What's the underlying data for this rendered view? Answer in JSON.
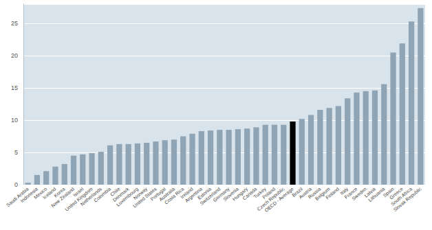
{
  "chart_data": {
    "type": "bar",
    "categories": [
      "Saudi Arabia",
      "Indonesia",
      "Mexico",
      "Iceland",
      "Korea",
      "New Zealand",
      "Israel",
      "United Kingdom",
      "Netherlands",
      "Colombia",
      "Chile",
      "Denmark",
      "Luxembourg",
      "Norway",
      "United States",
      "Portugal",
      "Australia",
      "Costa Rica",
      "Ireland",
      "Argentina",
      "Estonia",
      "Switzerland",
      "Germany",
      "Slovenia",
      "Hungary",
      "Canada",
      "Turkey",
      "Poland",
      "Czech Republic",
      "OECD - Average",
      "Brazil",
      "Austria",
      "Russia",
      "Belgium",
      "Finland",
      "Italy",
      "France",
      "Sweden",
      "Latvia",
      "Lithuania",
      "Spain",
      "Greece",
      "South Africa",
      "Slovak Republic"
    ],
    "values": [
      0.3,
      1.5,
      2.1,
      2.8,
      3.2,
      4.5,
      4.7,
      4.9,
      5.1,
      6.1,
      6.3,
      6.3,
      6.4,
      6.5,
      6.7,
      6.9,
      7.0,
      7.5,
      7.9,
      8.3,
      8.4,
      8.5,
      8.5,
      8.6,
      8.7,
      8.9,
      9.3,
      9.3,
      9.3,
      9.8,
      10.2,
      10.8,
      11.6,
      11.9,
      12.2,
      13.4,
      14.3,
      14.5,
      14.6,
      15.6,
      20.5,
      21.9,
      25.3,
      27.4
    ],
    "colors": [
      "#8fa4b4",
      "#8fa4b4",
      "#8fa4b4",
      "#8fa4b4",
      "#8fa4b4",
      "#8fa4b4",
      "#8fa4b4",
      "#8fa4b4",
      "#8fa4b4",
      "#8fa4b4",
      "#8fa4b4",
      "#8fa4b4",
      "#8fa4b4",
      "#8fa4b4",
      "#8fa4b4",
      "#8fa4b4",
      "#8fa4b4",
      "#8fa4b4",
      "#8fa4b4",
      "#8fa4b4",
      "#8fa4b4",
      "#8fa4b4",
      "#8fa4b4",
      "#8fa4b4",
      "#8fa4b4",
      "#8fa4b4",
      "#8fa4b4",
      "#8fa4b4",
      "#8fa4b4",
      "#000000",
      "#8fa4b4",
      "#8fa4b4",
      "#8fa4b4",
      "#8fa4b4",
      "#8fa4b4",
      "#8fa4b4",
      "#8fa4b4",
      "#8fa4b4",
      "#8fa4b4",
      "#8fa4b4",
      "#8fa4b4",
      "#8fa4b4",
      "#8fa4b4",
      "#8fa4b4"
    ],
    "ylim": [
      0,
      28
    ],
    "yticks": [
      0,
      5,
      10,
      15,
      20,
      25
    ],
    "grid": true
  }
}
